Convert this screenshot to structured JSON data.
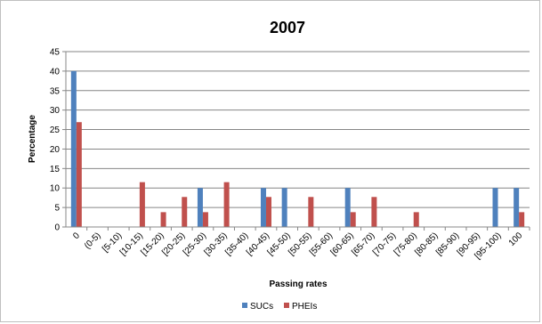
{
  "chart_data": {
    "type": "bar",
    "title": "2007",
    "xlabel": "Passing rates",
    "ylabel": "Percentage",
    "ylim": [
      0,
      45
    ],
    "yticks": [
      0,
      5,
      10,
      15,
      20,
      25,
      30,
      35,
      40,
      45
    ],
    "grid": true,
    "legend_position": "bottom",
    "categories": [
      "0",
      "(0-5)",
      "[5-10)",
      "[10-15)",
      "[15-20)",
      "[20-25)",
      "[25-30)",
      "[30-35)",
      "[35-40)",
      "[40-45)",
      "[45-50)",
      "[50-55)",
      "[55-60)",
      "[60-65)",
      "[65-70)",
      "[70-75)",
      "[75-80)",
      "[80-85)",
      "[85-90)",
      "[90-95)",
      "[95-100)",
      "100"
    ],
    "series": [
      {
        "name": "SUCs",
        "color": "#4F81BD",
        "values": [
          40,
          0,
          0,
          0,
          0,
          0,
          10,
          0,
          0,
          10,
          10,
          0,
          0,
          10,
          0,
          0,
          0,
          0,
          0,
          0,
          10,
          10
        ]
      },
      {
        "name": "PHEIs",
        "color": "#C0504D",
        "values": [
          26.9,
          0,
          0,
          11.5,
          3.8,
          7.7,
          3.8,
          11.5,
          0,
          7.7,
          0,
          7.7,
          0,
          3.8,
          7.7,
          0,
          3.8,
          0,
          0,
          0,
          0,
          3.8
        ]
      }
    ]
  }
}
